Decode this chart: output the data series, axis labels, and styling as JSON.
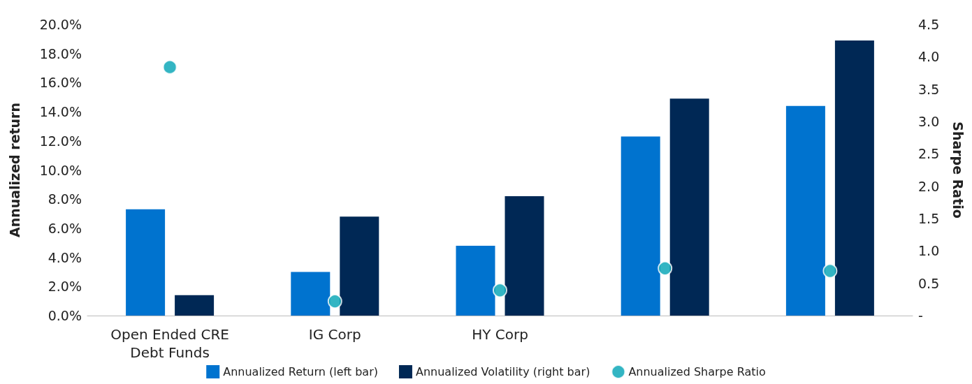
{
  "chart_data": {
    "type": "bar",
    "categories": [
      "Open Ended CRE\nDebt Funds",
      "IG Corp",
      "HY Corp",
      null,
      null
    ],
    "ylabel": "Annualized return",
    "y2label": "Sharpe Ratio",
    "series": [
      {
        "name": "Annualized Return (left bar)",
        "color": "#0073cf",
        "values": [
          7.3,
          3.0,
          4.8,
          12.3,
          14.4
        ]
      },
      {
        "name": "Annualized Volatility (right bar)",
        "color": "#002855",
        "values": [
          1.4,
          6.8,
          8.2,
          14.9,
          18.9
        ]
      },
      {
        "name": "Annualized Sharpe Ratio",
        "type": "scatter",
        "axis": "y2",
        "marker": "circle",
        "color": "#00a3b4",
        "values": [
          3.84,
          0.22,
          0.39,
          0.73,
          0.69
        ]
      }
    ],
    "ylim": [
      0,
      20
    ],
    "yticks": [
      {
        "value": 0,
        "label": "0.0%"
      },
      {
        "value": 2,
        "label": "2.0%"
      },
      {
        "value": 4,
        "label": "4.0%"
      },
      {
        "value": 6,
        "label": "6.0%"
      },
      {
        "value": 8,
        "label": "8.0%"
      },
      {
        "value": 10,
        "label": "10.0%"
      },
      {
        "value": 12,
        "label": "12.0%"
      },
      {
        "value": 14,
        "label": "14.0%"
      },
      {
        "value": 16,
        "label": "16.0%"
      },
      {
        "value": 18,
        "label": "18.0%"
      },
      {
        "value": 20,
        "label": "20.0%"
      }
    ],
    "y2lim": [
      0,
      4.5
    ],
    "y2ticks": [
      {
        "value": 0,
        "label": "-"
      },
      0.5,
      {
        "value": 1,
        "label": "1.0"
      },
      1.5,
      {
        "value": 2,
        "label": "2.0"
      },
      2.5,
      {
        "value": 3,
        "label": "3.0"
      },
      3.5,
      {
        "value": 4,
        "label": "4.0"
      },
      4.5
    ],
    "grid": false,
    "legend": "bottom"
  }
}
